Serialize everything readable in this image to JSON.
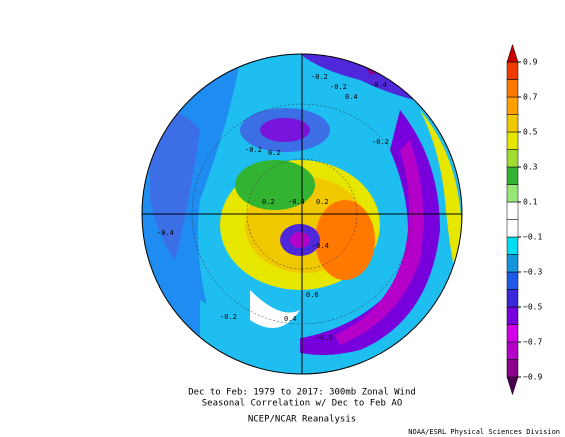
{
  "caption": {
    "line1": "Dec to Feb: 1979 to 2017: 300mb Zonal Wind",
    "line2": "Seasonal Correlation w/ Dec to Feb AO",
    "line3": "NCEP/NCAR Reanalysis"
  },
  "credit": "NOAA/ESRL Physical Sciences Division",
  "colorbar": {
    "range": [
      -1,
      1
    ],
    "colors": [
      "#4b0050",
      "#8c008c",
      "#b400c8",
      "#d200e6",
      "#7800dc",
      "#3c28dc",
      "#1e5ae6",
      "#1496dc",
      "#00dcf0",
      "#ffffff",
      "#ffffff",
      "#96e678",
      "#32b432",
      "#a0dc32",
      "#e6e600",
      "#f0c800",
      "#ffa000",
      "#ff7800",
      "#f03c00",
      "#c80000"
    ],
    "ticks": [
      {
        "value": 0.9,
        "label": "0.9"
      },
      {
        "value": 0.7,
        "label": "0.7"
      },
      {
        "value": 0.5,
        "label": "0.5"
      },
      {
        "value": 0.3,
        "label": "0.3"
      },
      {
        "value": 0.1,
        "label": "0.1"
      },
      {
        "value": -0.1,
        "label": "−0.1"
      },
      {
        "value": -0.3,
        "label": "−0.3"
      },
      {
        "value": -0.5,
        "label": "−0.5"
      },
      {
        "value": -0.7,
        "label": "−0.7"
      },
      {
        "value": -0.9,
        "label": "−0.9"
      }
    ]
  },
  "contour_labels": [
    "-0.2",
    "-0.2",
    "0.4",
    "-0.4",
    "-0.2",
    "0.2",
    "0.2",
    "-0.4",
    "0.2",
    "-0.4",
    "-0.4",
    "0.6",
    "-0.2",
    "0.4",
    "-0.6",
    "-0.2"
  ]
}
